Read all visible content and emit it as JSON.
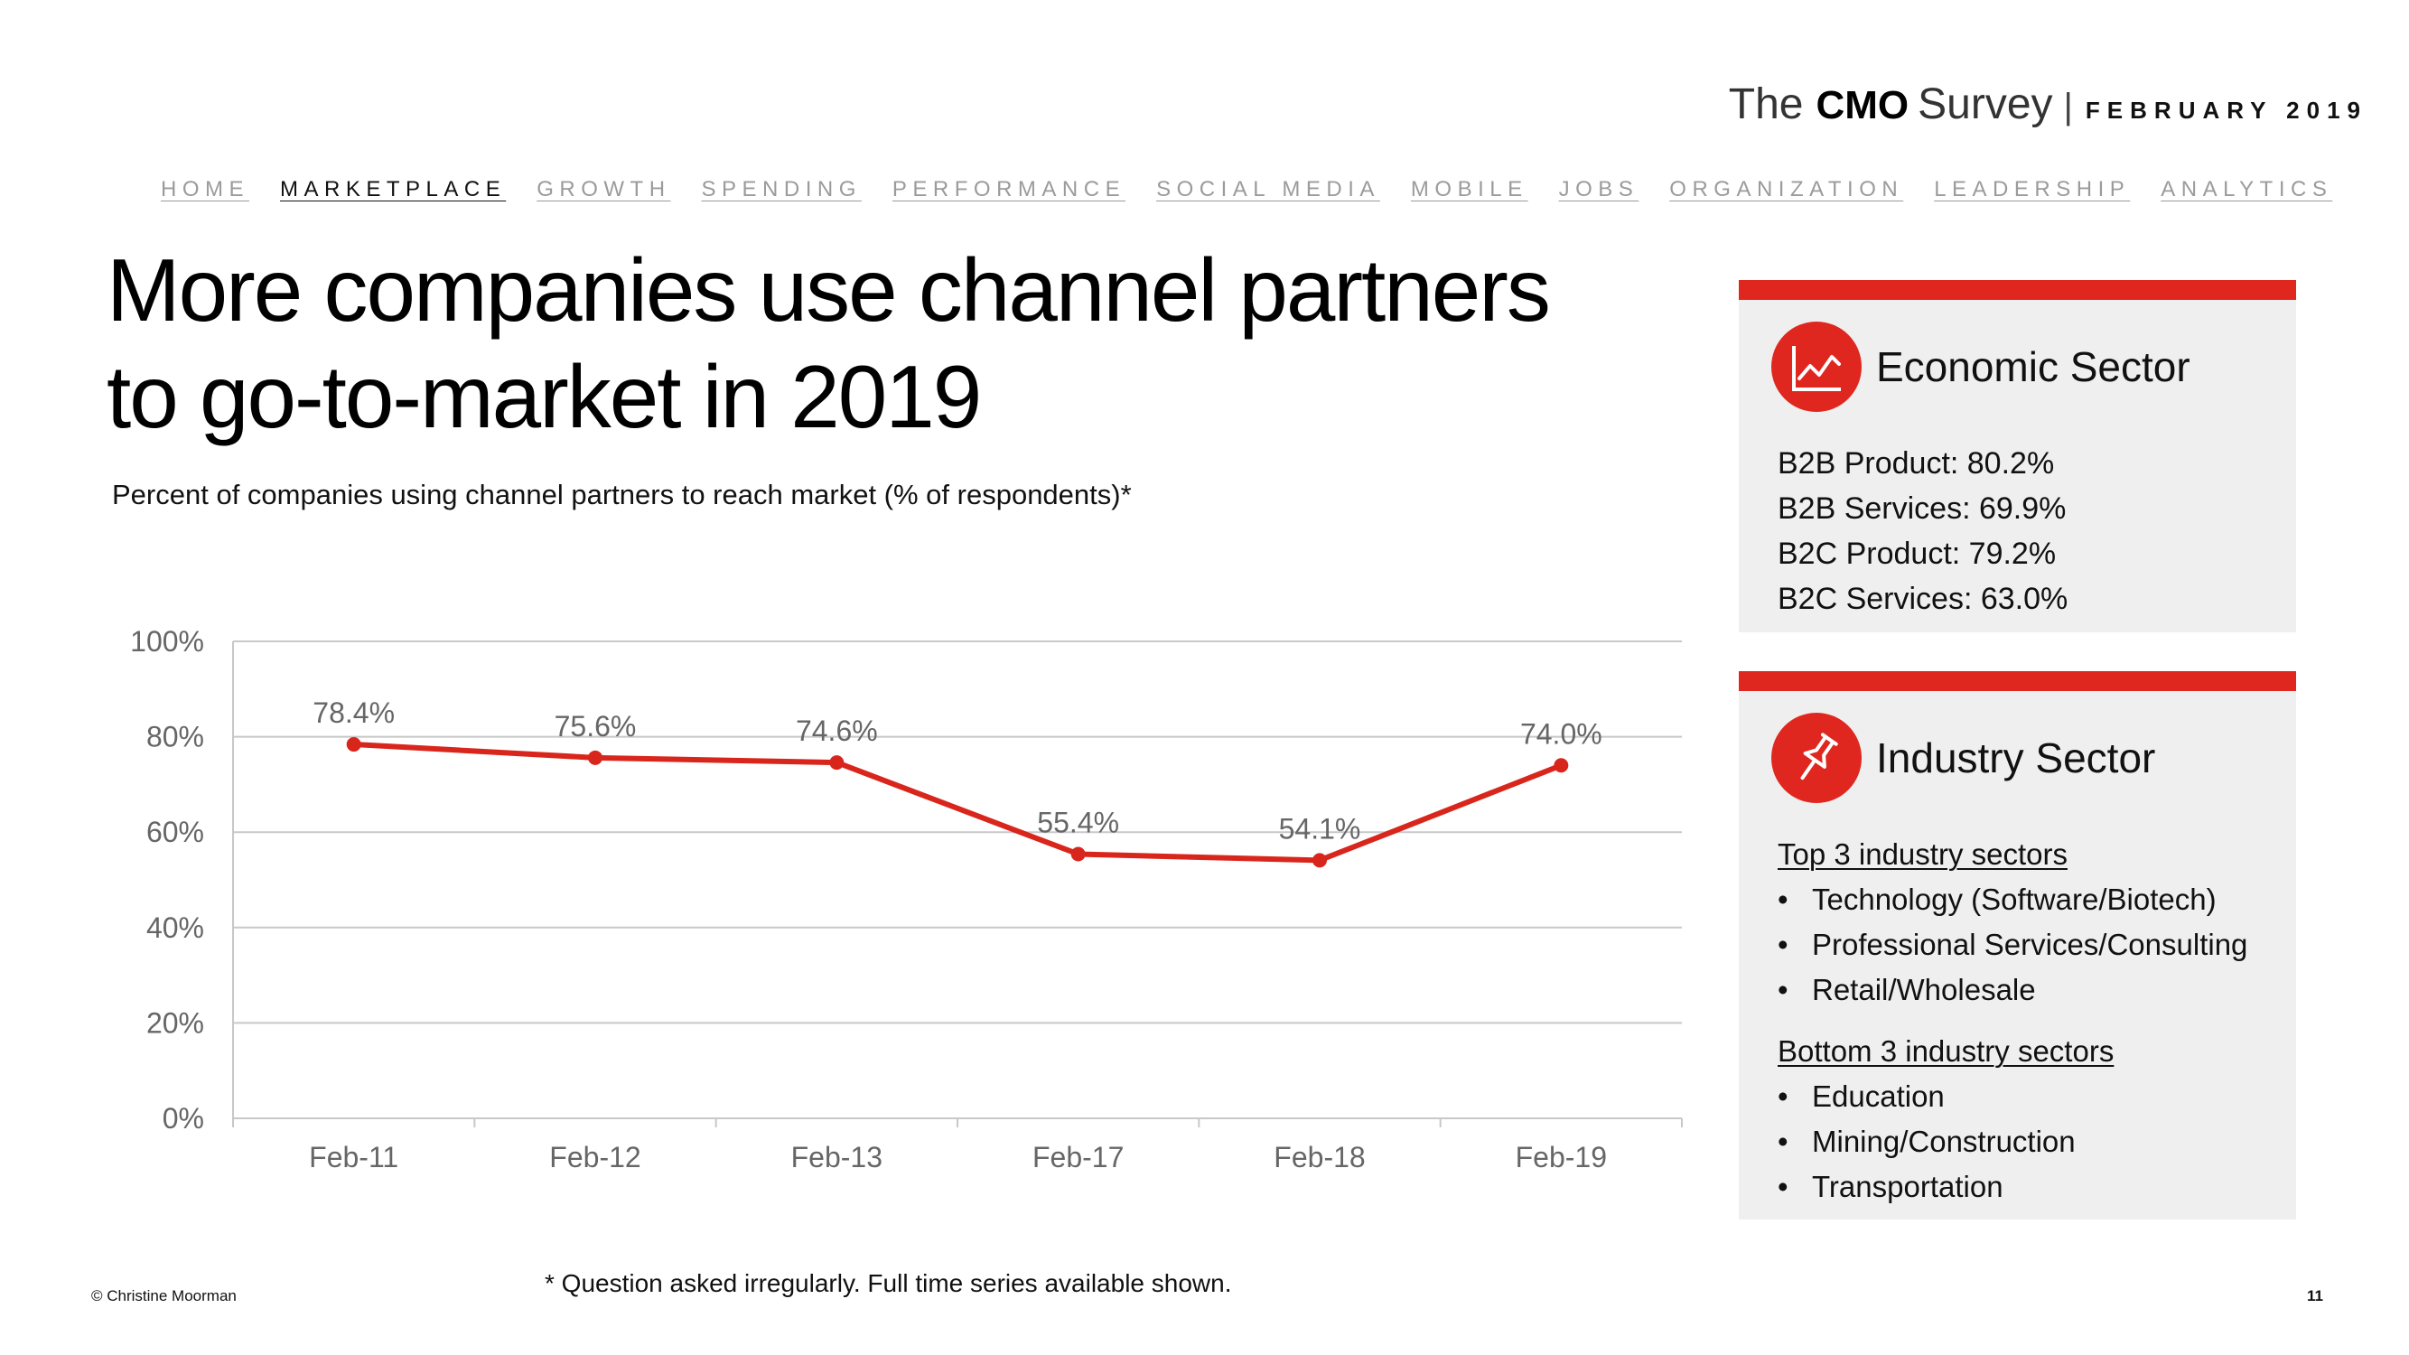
{
  "brand": {
    "the": "The",
    "cmo": "CMO",
    "survey": "Survey",
    "separator": "|",
    "month": "FEBRUARY 2019"
  },
  "nav": {
    "items": [
      "HOME",
      "MARKETPLACE",
      "GROWTH",
      "SPENDING",
      "PERFORMANCE",
      "SOCIAL MEDIA",
      "MOBILE",
      "JOBS",
      "ORGANIZATION",
      "LEADERSHIP",
      "ANALYTICS"
    ],
    "active": "MARKETPLACE"
  },
  "title": {
    "line1": "More companies use channel partners",
    "line2": "to go-to-market in 2019"
  },
  "subtitle": "Percent of companies using channel partners to reach market (% of respondents)*",
  "chart_data": {
    "type": "line",
    "title": "Percent of companies using channel partners to reach market (% of respondents)*",
    "categories": [
      "Feb-11",
      "Feb-12",
      "Feb-13",
      "Feb-17",
      "Feb-18",
      "Feb-19"
    ],
    "series": [
      {
        "name": "Channel partners",
        "values": [
          78.4,
          75.6,
          74.6,
          55.4,
          54.1,
          74.0
        ],
        "color": "#d9261c"
      }
    ],
    "data_labels": [
      "78.4%",
      "75.6%",
      "74.6%",
      "55.4%",
      "54.1%",
      "74.0%"
    ],
    "y_ticks": [
      0,
      20,
      40,
      60,
      80,
      100
    ],
    "y_tick_labels": [
      "0%",
      "20%",
      "40%",
      "60%",
      "80%",
      "100%"
    ],
    "ylim": [
      0,
      100
    ],
    "xlabel": "",
    "ylabel": "",
    "grid": true
  },
  "economic": {
    "title": "Economic Sector",
    "icon": "line-chart-icon",
    "stats": [
      "B2B Product: 80.2%",
      "B2B Services: 69.9%",
      "B2C Product: 79.2%",
      "B2C Services: 63.0%"
    ]
  },
  "industry": {
    "title": "Industry Sector",
    "icon": "pushpin-icon",
    "top_heading": "Top 3 industry sectors",
    "top": [
      "Technology (Software/Biotech)",
      "Professional Services/Consulting",
      "Retail/Wholesale"
    ],
    "bottom_heading": "Bottom 3 industry sectors",
    "bottom": [
      "Education",
      "Mining/Construction",
      "Transportation"
    ]
  },
  "footnote": "* Question asked irregularly. Full time series available shown.",
  "copyright": "© Christine Moorman",
  "page_number": "11",
  "colors": {
    "accent": "#e0271f",
    "line": "#d9261c",
    "card_bg": "#efefef",
    "grid": "#c8c8c8"
  }
}
